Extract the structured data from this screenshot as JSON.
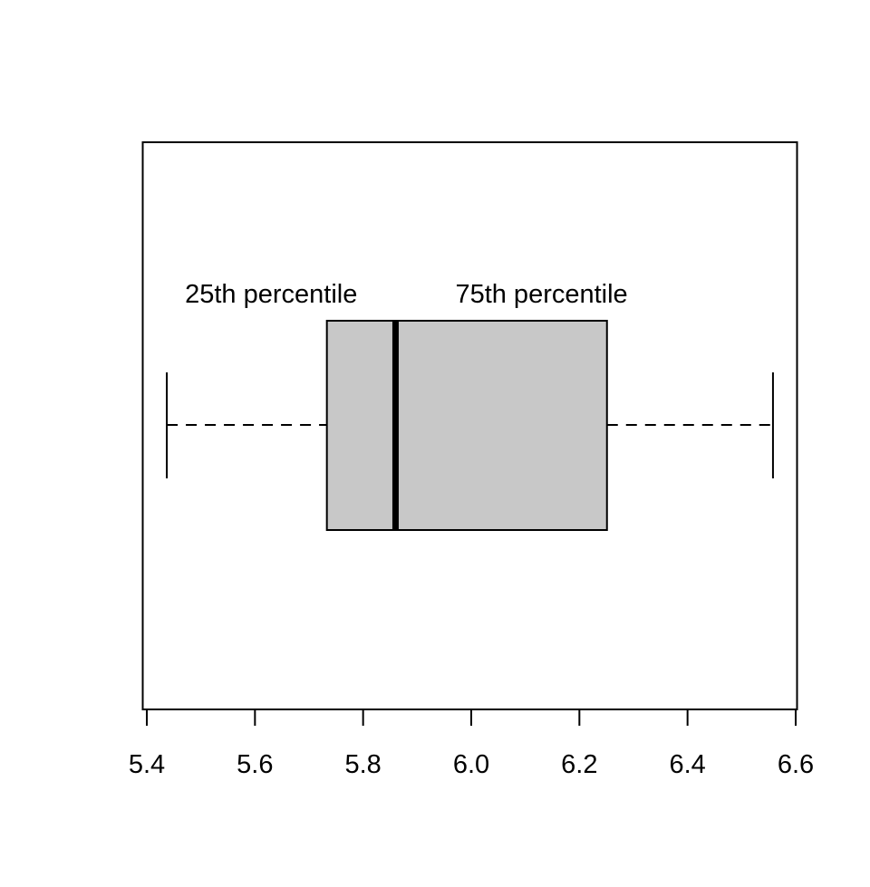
{
  "chart_data": {
    "type": "boxplot",
    "orientation": "horizontal",
    "title": "",
    "xlabel": "",
    "ylabel": "",
    "xlim": [
      5.4,
      6.6
    ],
    "x_ticks": [
      5.4,
      5.6,
      5.8,
      6.0,
      6.2,
      6.4,
      6.6
    ],
    "x_tick_labels": [
      "5.4",
      "5.6",
      "5.8",
      "6.0",
      "6.2",
      "6.4",
      "6.6"
    ],
    "box": {
      "min": 5.437,
      "q1": 5.733,
      "median": 5.86,
      "q3": 6.251,
      "max": 6.558
    },
    "annotations": [
      {
        "text": "25th percentile",
        "x": 5.63
      },
      {
        "text": "75th percentile",
        "x": 6.13
      }
    ],
    "box_fill": "#c8c8c8",
    "line_color": "#000000",
    "whisker_style": "dashed",
    "grid": false
  }
}
